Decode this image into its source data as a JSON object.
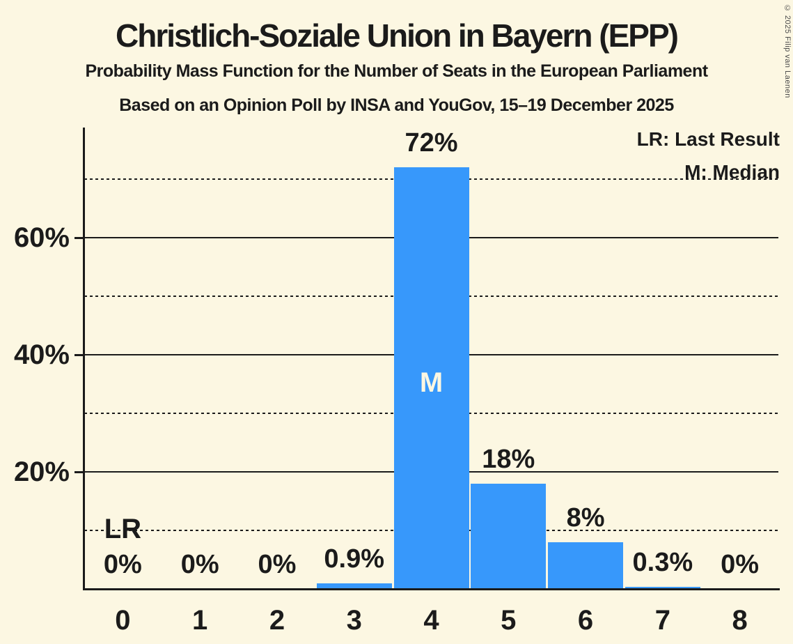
{
  "chart_data": {
    "type": "bar",
    "title": "Christlich-Soziale Union in Bayern (EPP)",
    "subtitle1": "Probability Mass Function for the Number of Seats in the European Parliament",
    "subtitle2": "Based on an Opinion Poll by INSA and YouGov, 15–19 December 2025",
    "categories": [
      "0",
      "1",
      "2",
      "3",
      "4",
      "5",
      "6",
      "7",
      "8"
    ],
    "values": [
      0,
      0,
      0,
      0.9,
      72,
      18,
      8,
      0.3,
      0
    ],
    "value_labels": [
      "0%",
      "0%",
      "0%",
      "0.9%",
      "72%",
      "18%",
      "8%",
      "0.3%",
      "0%"
    ],
    "xlabel": "",
    "ylabel": "",
    "ylim": [
      0,
      79
    ],
    "solid_gridlines": [
      20,
      40,
      60
    ],
    "dotted_gridlines": [
      10,
      30,
      50,
      70
    ],
    "ytick_labels": [
      {
        "value": 20,
        "label": "20%"
      },
      {
        "value": 40,
        "label": "40%"
      },
      {
        "value": 60,
        "label": "60%"
      }
    ],
    "median_seat_index": 4,
    "median_marker": "M",
    "last_result_seat_index": 0,
    "last_result_marker": "LR",
    "legend": {
      "lr": "LR: Last Result",
      "m": "M: Median"
    },
    "copyright": "© 2025 Filip van Laenen",
    "colors": {
      "bar": "#3798FB",
      "background": "#FCF7E2",
      "text": "#1B1B1B"
    }
  }
}
